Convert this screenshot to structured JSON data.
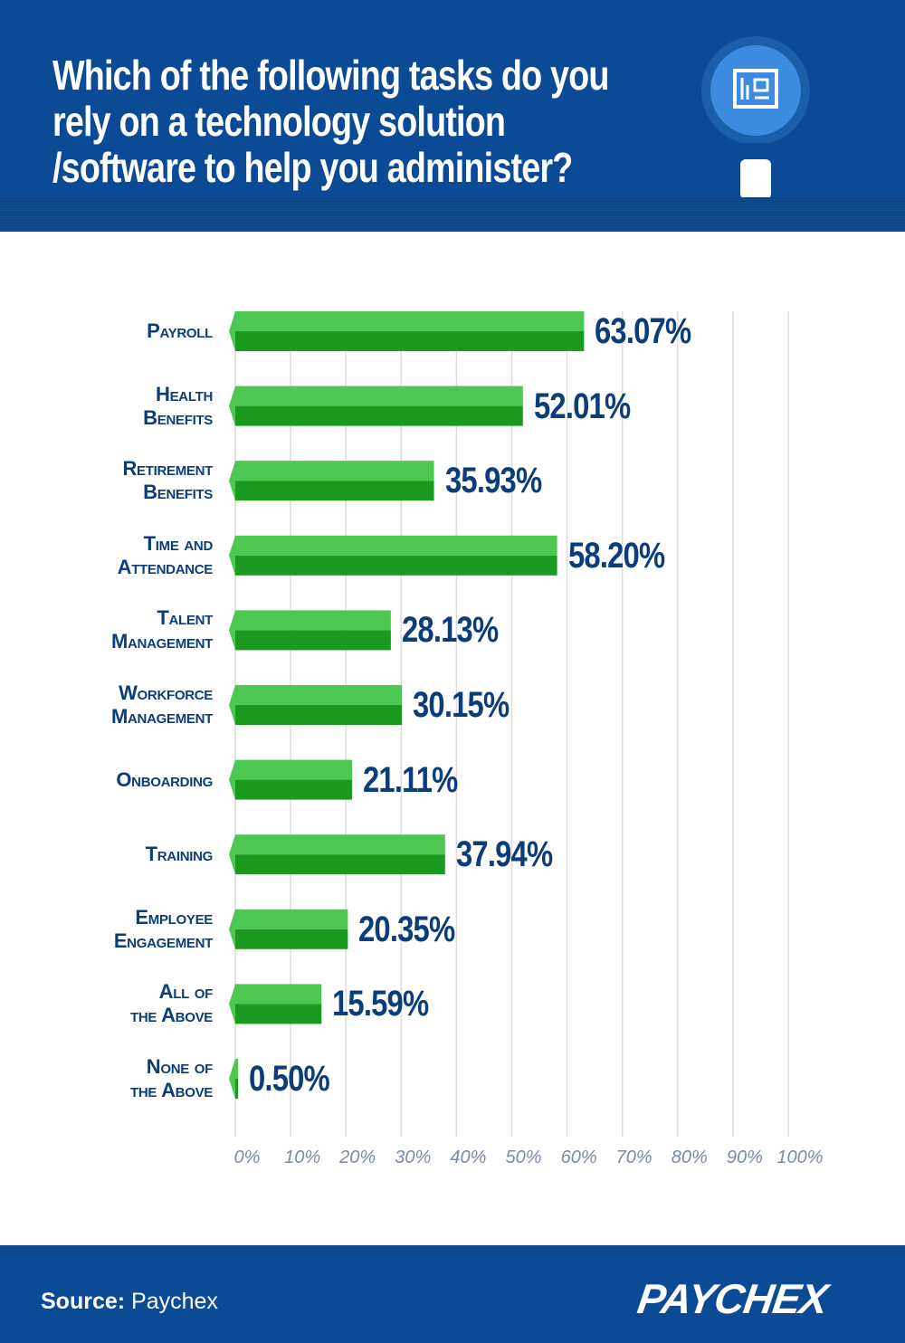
{
  "header": {
    "title_lines": [
      "Which of the following tasks do you",
      "rely on a technology solution",
      "/software to help you administer?"
    ],
    "icon": "magnifier-with-circuit-board-icon"
  },
  "chart_data": {
    "type": "bar",
    "orientation": "horizontal",
    "categories": [
      [
        "Payroll"
      ],
      [
        "Health",
        "Benefits"
      ],
      [
        "Retirement",
        "Benefits"
      ],
      [
        "Time and",
        "Attendance"
      ],
      [
        "Talent",
        "Management"
      ],
      [
        "Workforce",
        "Management"
      ],
      [
        "Onboarding"
      ],
      [
        "Training"
      ],
      [
        "Employee",
        "Engagement"
      ],
      [
        "All of",
        "the Above"
      ],
      [
        "None of",
        "the Above"
      ]
    ],
    "values": [
      63.07,
      52.01,
      35.93,
      58.2,
      28.13,
      30.15,
      21.11,
      37.94,
      20.35,
      15.59,
      0.5
    ],
    "value_labels": [
      "63.07%",
      "52.01%",
      "35.93%",
      "58.20%",
      "28.13%",
      "30.15%",
      "21.11%",
      "37.94%",
      "20.35%",
      "15.59%",
      "0.50%"
    ],
    "xlim": [
      0,
      100
    ],
    "ticks": [
      "0%",
      "10%",
      "20%",
      "30%",
      "40%",
      "50%",
      "60%",
      "70%",
      "80%",
      "90%",
      "100%"
    ],
    "grid": true,
    "colors": {
      "bar_top": "#4cc752",
      "bar_bottom": "#1a9a1e",
      "grid": "#dcdcdc",
      "text": "#0b3d7a"
    }
  },
  "footer": {
    "source_label": "Source:",
    "source_value": "Paychex",
    "logo": "PAYCHEX"
  }
}
